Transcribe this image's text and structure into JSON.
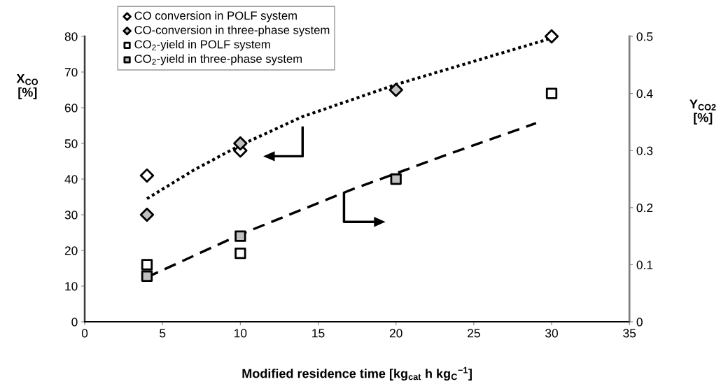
{
  "chart_data": {
    "type": "scatter",
    "xlabel": "Modified residence time [kg$_{cat}$ h kg$_{C}$$^{−1}$]",
    "ylabel": "X$_{CO}$\n[%]",
    "y2label": "Y$_{CO2}$\n[%]",
    "xlim": [
      0,
      35
    ],
    "xticks": [
      0,
      5,
      10,
      15,
      20,
      25,
      30,
      35
    ],
    "ylim": [
      0,
      80
    ],
    "yticks": [
      0,
      10,
      20,
      30,
      40,
      50,
      60,
      70,
      80
    ],
    "y2lim": [
      0,
      0.5
    ],
    "y2ticks": [
      0,
      0.1,
      0.2,
      0.3,
      0.4,
      0.5
    ],
    "legend": "top left",
    "grid": false,
    "series": [
      {
        "name": "CO conversion in POLF system",
        "marker": "diamond",
        "color": "#ffffff",
        "x": [
          4,
          10,
          30
        ],
        "values": [
          41,
          48,
          80
        ]
      },
      {
        "name": "CO-conversion in three-phase system",
        "marker": "diamond",
        "color": "#c0c0c0",
        "x": [
          4,
          10,
          20
        ],
        "values": [
          30,
          50,
          65
        ]
      },
      {
        "name": "CO$_{2}$-yield in POLF system",
        "marker": "square",
        "color": "#ffffff",
        "axis": "y2",
        "x": [
          4,
          10,
          30
        ],
        "values": [
          0.1,
          0.12,
          0.4
        ]
      },
      {
        "name": "CO$_{2}$-yield in three-phase system",
        "marker": "square",
        "color": "#c0c0c0",
        "axis": "y2",
        "x": [
          4,
          10,
          20
        ],
        "values": [
          0.08,
          0.15,
          0.25
        ]
      },
      {
        "type": "line",
        "line_style": "dotted",
        "color": "#000000",
        "x": [
          4,
          7,
          10,
          14,
          20,
          25,
          30
        ],
        "values": [
          34.5,
          42.5,
          49.5,
          57.5,
          66.5,
          73,
          79.5
        ]
      },
      {
        "type": "line",
        "line_style": "dashed",
        "color": "#000000",
        "axis": "y2",
        "x": [
          4,
          10,
          17,
          23,
          29
        ],
        "values": [
          0.078,
          0.153,
          0.23,
          0.29,
          0.348
        ]
      }
    ]
  }
}
